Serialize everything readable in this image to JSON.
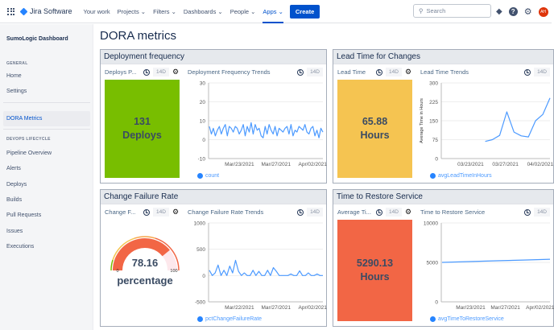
{
  "topbar": {
    "brand": "Jira Software",
    "nav": [
      "Your work",
      "Projects ⌄",
      "Filters ⌄",
      "Dashboards ⌄",
      "People ⌄",
      "Apps ⌄"
    ],
    "active": "Apps ⌄",
    "create": "Create",
    "search_placeholder": "Search",
    "help": "?",
    "avatar": "AH"
  },
  "sidebar": {
    "title": "SumoLogic Dashboard",
    "general": "GENERAL",
    "items_general": [
      "Home",
      "Settings"
    ],
    "selected": "DORA Metrics",
    "devops": "DEVOPS LIFECYCLE",
    "items_devops": [
      "Pipeline Overview",
      "Alerts",
      "Deploys",
      "Builds",
      "Pull Requests",
      "Issues",
      "Executions"
    ]
  },
  "page_title": "DORA metrics",
  "colors": {
    "accent": "#0052cc",
    "green": "#78be00",
    "yellow": "#f5c451",
    "orange": "#f26645",
    "line": "#4c9aff"
  },
  "panels": [
    {
      "title": "Deployment frequency",
      "stat_title": "Deploys P...",
      "range": "14D",
      "value": "131",
      "unit": "Deploys",
      "trend_title": "Deployment Frequency Trends",
      "trend_range": "14D",
      "legend": "count"
    },
    {
      "title": "Lead Time for Changes",
      "stat_title": "Lead Time",
      "range": "14D",
      "value": "65.88",
      "unit": "Hours",
      "trend_title": "Lead Time Trends",
      "trend_range": "14D",
      "legend": "avgLeadTimeInHours"
    },
    {
      "title": "Change Failure Rate",
      "stat_title": "Change F...",
      "range": "14D",
      "value": "78.16",
      "unit": "percentage",
      "gauge_min": "0",
      "gauge_max": "100",
      "trend_title": "Change Failure Rate Trends",
      "trend_range": "14D",
      "legend": "pctChangeFailureRate"
    },
    {
      "title": "Time to Restore Service",
      "stat_title": "Average Ti...",
      "range": "14D",
      "value": "5290.13",
      "unit": "Hours",
      "trend_title": "Time to Restore Service",
      "trend_range": "14D",
      "legend": "avgTimeToRestoreService"
    }
  ],
  "chart_data": [
    {
      "type": "line",
      "ylim": [
        -10,
        30
      ],
      "yticks": [
        "30",
        "20",
        "10",
        "0",
        "-10"
      ],
      "xticks": [
        "Mar/23/2021",
        "Mar/27/2021",
        "Apr/02/2021"
      ],
      "series": [
        {
          "name": "count",
          "values": [
            7,
            3,
            6,
            2,
            5,
            7,
            3,
            6,
            8,
            2,
            7,
            6,
            4,
            7,
            6,
            3,
            5,
            8,
            2,
            7,
            4,
            9,
            3,
            8,
            5,
            6,
            2,
            1,
            7,
            3,
            8,
            5,
            3,
            7,
            2,
            6,
            5,
            4,
            6,
            7,
            3,
            8,
            2,
            5,
            4,
            7,
            6,
            5,
            8,
            4,
            3,
            6,
            7,
            2,
            5,
            1,
            6,
            4
          ]
        }
      ]
    },
    {
      "type": "line",
      "ylim": [
        0,
        300
      ],
      "yticks": [
        "300",
        "225",
        "150",
        "75",
        "0"
      ],
      "ylabel": "Average Time in Hours",
      "xticks": [
        "03/23/2021",
        "03/27/2021",
        "04/02/2021"
      ],
      "series": [
        {
          "name": "avgLeadTimeInHours",
          "values": [
            null,
            null,
            null,
            null,
            null,
            null,
            68,
            75,
            92,
            185,
            105,
            90,
            86,
            150,
            175,
            240
          ]
        }
      ]
    },
    {
      "type": "line",
      "ylim": [
        -500,
        1000
      ],
      "yticks": [
        "1000",
        "500",
        "0",
        "-500"
      ],
      "xticks": [
        "Mar/22/2021",
        "Mar/27/2021",
        "Apr/02/2021"
      ],
      "series": [
        {
          "name": "pctChangeFailureRate",
          "values": [
            100,
            0,
            50,
            200,
            0,
            100,
            0,
            180,
            50,
            290,
            80,
            0,
            50,
            0,
            0,
            100,
            0,
            80,
            0,
            0,
            100,
            0,
            150,
            80,
            0,
            0,
            0,
            0,
            30,
            0,
            0,
            90,
            0,
            0,
            50,
            0,
            0,
            30,
            0,
            0
          ]
        }
      ]
    },
    {
      "type": "line",
      "ylim": [
        0,
        10000
      ],
      "yticks": [
        "10000",
        "5000",
        "0"
      ],
      "xticks": [
        "Mar/23/2021",
        "Mar/27/2021",
        "Apr/02/2021"
      ],
      "series": [
        {
          "name": "avgTimeToRestoreService",
          "values": [
            5000,
            5100,
            5200,
            5300,
            5400
          ]
        }
      ]
    }
  ]
}
